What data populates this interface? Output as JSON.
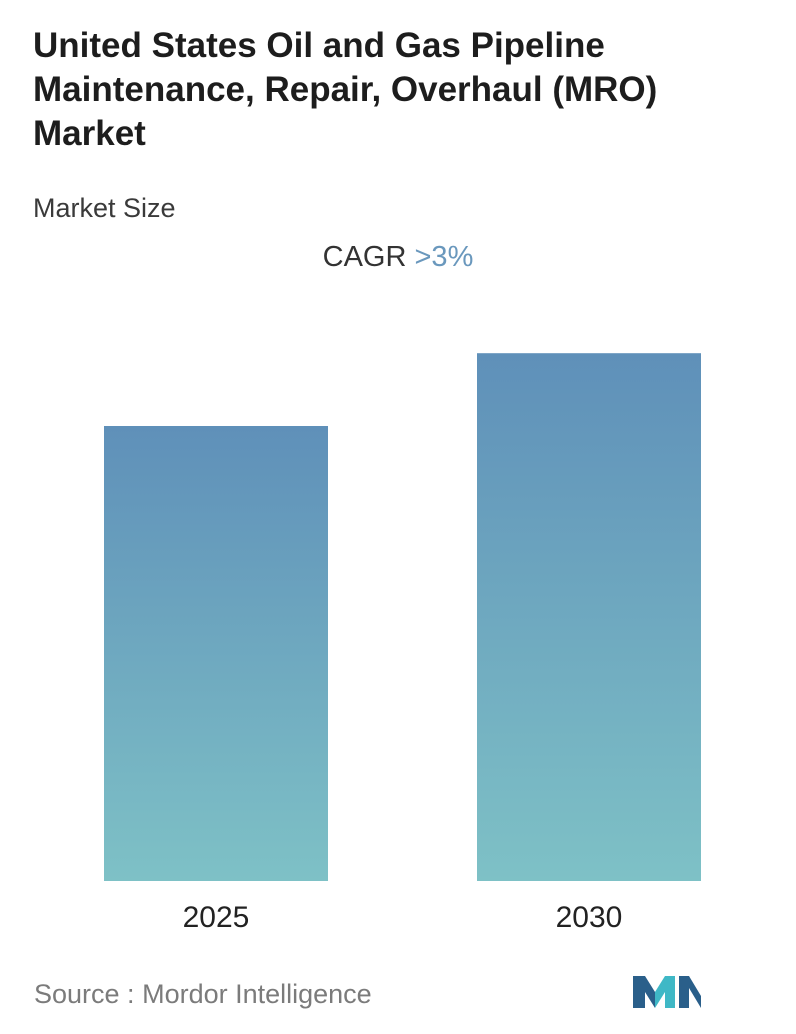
{
  "header": {
    "title": "United States Oil and Gas Pipeline Maintenance, Repair, Overhaul (MRO) Market",
    "subtitle": "Market Size"
  },
  "cagr": {
    "label": "CAGR",
    "value": ">3%"
  },
  "chart_data": {
    "type": "bar",
    "categories": [
      "2025",
      "2030"
    ],
    "values": [
      100,
      116
    ],
    "ylim": [
      0,
      120
    ],
    "grid": false,
    "legend": "none",
    "colors": {
      "bar_top": "#5f90b9",
      "bar_bottom": "#7ec1c6",
      "tick_label": "#222222"
    }
  },
  "footer": {
    "source_label": "Source :",
    "source_name": "Mordor Intelligence",
    "logo_icon": "mordor-intelligence-logo-icon",
    "logo_colors": [
      "#2a5f8a",
      "#3fb8c6"
    ]
  }
}
